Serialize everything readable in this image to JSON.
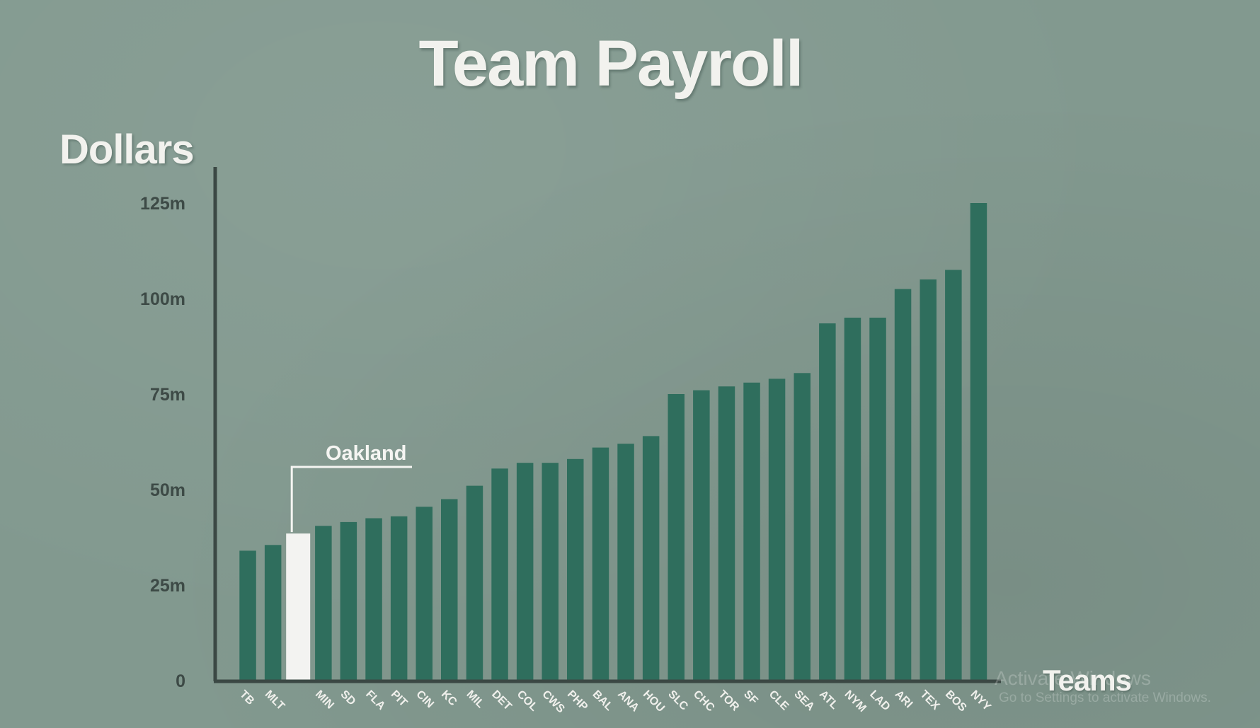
{
  "chart_data": {
    "type": "bar",
    "title": "Team Payroll",
    "ylabel": "Dollars",
    "xlabel": "Teams",
    "ylim": [
      0,
      135
    ],
    "yticks": [
      {
        "value": 0,
        "label": "0"
      },
      {
        "value": 25,
        "label": "25m"
      },
      {
        "value": 50,
        "label": "50m"
      },
      {
        "value": 75,
        "label": "75m"
      },
      {
        "value": 100,
        "label": "100m"
      },
      {
        "value": 125,
        "label": "125m"
      }
    ],
    "grid": false,
    "legend": "none",
    "categories": [
      "TB",
      "MLT",
      "",
      "MIN",
      "SD",
      "FLA",
      "PIT",
      "CIN",
      "KC",
      "MIL",
      "DET",
      "COL",
      "CWS",
      "PHP",
      "BAL",
      "ANA",
      "HOU",
      "SLC",
      "CHC",
      "TOR",
      "SF",
      "CLE",
      "SEA",
      "ATL",
      "NYM",
      "LAD",
      "ARI",
      "TEX",
      "BOS",
      "NYY"
    ],
    "values": [
      34,
      35.5,
      38.5,
      40.5,
      41.5,
      42.5,
      43,
      45.5,
      47.5,
      51,
      55.5,
      57,
      57,
      58,
      61,
      62,
      64,
      75,
      76,
      77,
      78,
      79,
      80.5,
      93.5,
      95,
      95,
      102.5,
      105,
      107.5,
      125
    ],
    "annotation": {
      "label": "Oakland",
      "category_index": 2
    },
    "colors": {
      "bar": "#2f6e5d",
      "highlight_bar": "#f3f3f1",
      "axis": "#3b4844",
      "background": "#82998f"
    }
  },
  "watermark": {
    "title": "Activate Windows",
    "subtitle": "Go to Settings to activate Windows."
  }
}
